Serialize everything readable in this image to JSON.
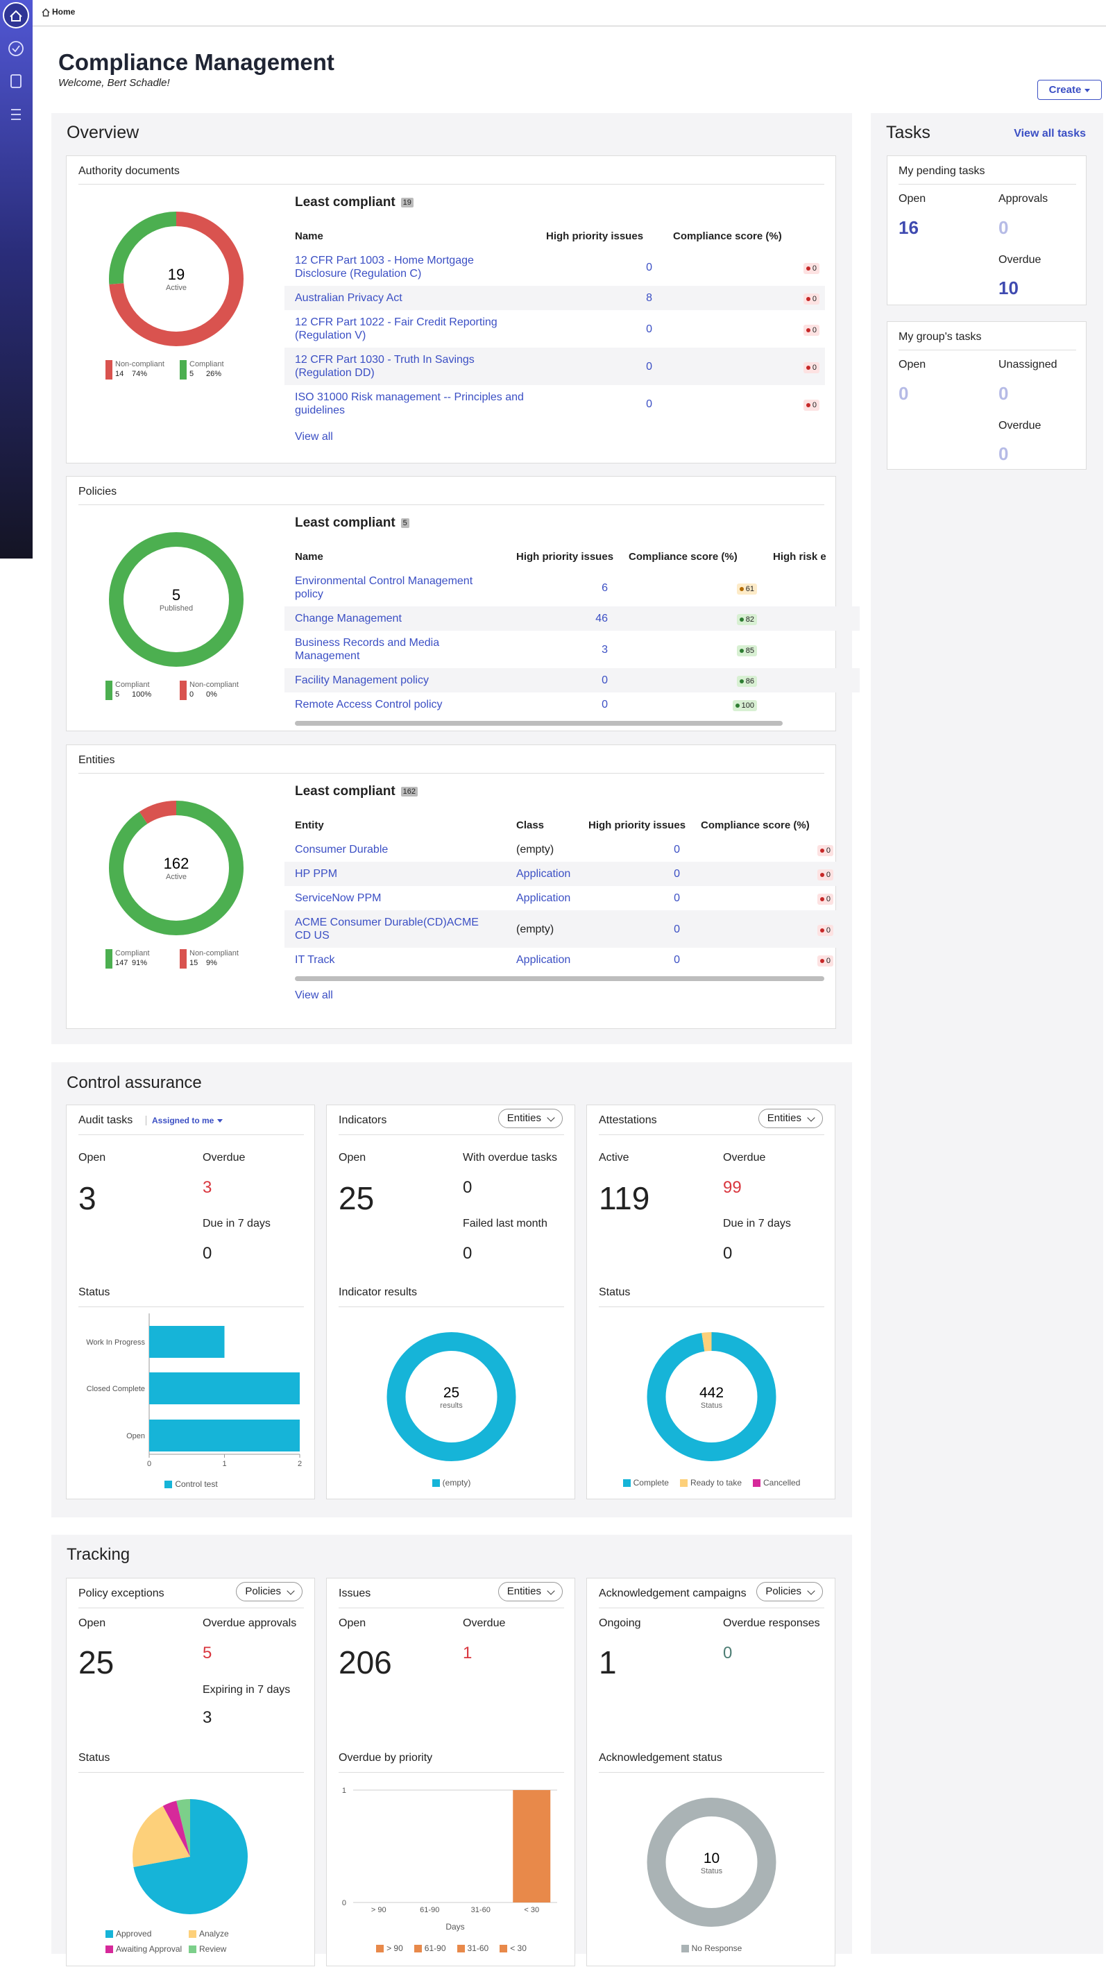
{
  "breadcrumb": "Home",
  "header": {
    "title": "Compliance Management",
    "welcome": "Welcome, Bert Schadle!",
    "create": "Create"
  },
  "overview": {
    "title": "Overview",
    "cards": [
      {
        "title": "Authority documents",
        "donut": {
          "type": "donut",
          "total": 19,
          "label": "Active",
          "segments": [
            {
              "name": "Non-compliant",
              "value": 14,
              "percent": "74%",
              "color": "#d9534f"
            },
            {
              "name": "Compliant",
              "value": 5,
              "percent": "26%",
              "color": "#4caf50"
            }
          ]
        },
        "table": {
          "heading": "Least compliant",
          "count": 19,
          "columns": [
            "Name",
            "High priority issues",
            "Compliance score (%)"
          ],
          "rows": [
            {
              "name": "12 CFR Part 1003 - Home Mortgage Disclosure (Regulation C)",
              "issues": 0,
              "score": 0,
              "score_color": "red"
            },
            {
              "name": "Australian Privacy Act",
              "issues": 8,
              "score": 0,
              "score_color": "red"
            },
            {
              "name": "12 CFR Part 1022 - Fair Credit Reporting (Regulation V)",
              "issues": 0,
              "score": 0,
              "score_color": "red"
            },
            {
              "name": "12 CFR Part 1030 - Truth In Savings (Regulation DD)",
              "issues": 0,
              "score": 0,
              "score_color": "red"
            },
            {
              "name": "ISO 31000 Risk management -- Principles and guidelines",
              "issues": 0,
              "score": 0,
              "score_color": "red"
            }
          ]
        },
        "view_all": "View all"
      },
      {
        "title": "Policies",
        "donut": {
          "type": "donut",
          "total": 5,
          "label": "Published",
          "segments": [
            {
              "name": "Compliant",
              "value": 5,
              "percent": "100%",
              "color": "#4caf50"
            },
            {
              "name": "Non-compliant",
              "value": 0,
              "percent": "0%",
              "color": "#d9534f"
            }
          ]
        },
        "table": {
          "heading": "Least compliant",
          "count": 5,
          "columns": [
            "Name",
            "High priority issues",
            "Compliance score (%)",
            "High risk e"
          ],
          "rows": [
            {
              "name": "Environmental Control Management policy",
              "issues": 6,
              "score": 61,
              "score_color": "orange"
            },
            {
              "name": "Change Management",
              "issues": 46,
              "score": 82,
              "score_color": "green"
            },
            {
              "name": "Business Records and Media Management",
              "issues": 3,
              "score": 85,
              "score_color": "green"
            },
            {
              "name": "Facility Management policy",
              "issues": 0,
              "score": 86,
              "score_color": "green"
            },
            {
              "name": "Remote Access Control policy",
              "issues": 0,
              "score": 100,
              "score_color": "green"
            }
          ]
        }
      },
      {
        "title": "Entities",
        "donut": {
          "type": "donut",
          "total": 162,
          "label": "Active",
          "segments": [
            {
              "name": "Compliant",
              "value": 147,
              "percent": "91%",
              "color": "#4caf50"
            },
            {
              "name": "Non-compliant",
              "value": 15,
              "percent": "9%",
              "color": "#d9534f"
            }
          ]
        },
        "table": {
          "heading": "Least compliant",
          "count": 162,
          "columns": [
            "Entity",
            "Class",
            "High priority issues",
            "Compliance score (%)"
          ],
          "rows": [
            {
              "name": "Consumer Durable",
              "class": "(empty)",
              "class_color": "#222222",
              "issues": 0,
              "score": 0,
              "score_color": "red"
            },
            {
              "name": "HP PPM",
              "class": "Application",
              "class_color": "#3b4fc4",
              "issues": 0,
              "score": 0,
              "score_color": "red"
            },
            {
              "name": "ServiceNow PPM",
              "class": "Application",
              "class_color": "#3b4fc4",
              "issues": 0,
              "score": 0,
              "score_color": "red"
            },
            {
              "name": "ACME Consumer Durable(CD)ACME CD US",
              "class": "(empty)",
              "class_color": "#222222",
              "issues": 0,
              "score": 0,
              "score_color": "red"
            },
            {
              "name": "IT Track",
              "class": "Application",
              "class_color": "#3b4fc4",
              "issues": 0,
              "score": 0,
              "score_color": "red"
            }
          ]
        },
        "view_all": "View all"
      }
    ]
  },
  "tasks": {
    "title": "Tasks",
    "view_all": "View all tasks",
    "cards": [
      {
        "title": "My pending tasks",
        "stats": [
          {
            "label": "Open",
            "value": 16,
            "color": "#3f4ab0"
          },
          {
            "label": "Approvals",
            "value": 0,
            "color": "#b6bbe6"
          },
          {
            "label": "Overdue",
            "value": 10,
            "color": "#3f4ab0"
          }
        ]
      },
      {
        "title": "My group's tasks",
        "stats": [
          {
            "label": "Open",
            "value": 0,
            "color": "#b6bbe6"
          },
          {
            "label": "Unassigned",
            "value": 0,
            "color": "#b6bbe6"
          },
          {
            "label": "Overdue",
            "value": 0,
            "color": "#b6bbe6"
          }
        ]
      }
    ]
  },
  "control_assurance": {
    "title": "Control assurance",
    "cards": [
      {
        "title": "Audit tasks",
        "filter": "Assigned to me",
        "stats": [
          {
            "label": "Open",
            "value": 3,
            "color": "#222222"
          },
          {
            "label": "Overdue",
            "value": 3,
            "color": "#d9363e"
          },
          {
            "label": "Due in 7 days",
            "value": 0,
            "color": "#222222"
          }
        ],
        "chart": {
          "title": "Status",
          "type": "hbar",
          "categories": [
            "Work In Progress",
            "Closed Complete",
            "Open"
          ],
          "series": [
            {
              "name": "Control test",
              "color": "#16b4d8",
              "values": [
                1,
                2,
                2
              ]
            }
          ],
          "xlim": [
            0,
            2
          ],
          "xticks": [
            0,
            1,
            2
          ]
        }
      },
      {
        "title": "Indicators",
        "dropdown": "Entities",
        "stats": [
          {
            "label": "Open",
            "value": 25,
            "color": "#222222"
          },
          {
            "label": "With overdue tasks",
            "value": 0,
            "color": "#222222"
          },
          {
            "label": "Failed last month",
            "value": 0,
            "color": "#222222"
          }
        ],
        "chart": {
          "title": "Indicator results",
          "type": "donut",
          "total": 25,
          "label": "results",
          "segments": [
            {
              "name": "(empty)",
              "value": 25,
              "color": "#16b4d8"
            }
          ]
        }
      },
      {
        "title": "Attestations",
        "dropdown": "Entities",
        "stats": [
          {
            "label": "Active",
            "value": 119,
            "color": "#222222"
          },
          {
            "label": "Overdue",
            "value": 99,
            "color": "#d9363e"
          },
          {
            "label": "Due in 7 days",
            "value": 0,
            "color": "#222222"
          }
        ],
        "chart": {
          "title": "Status",
          "type": "donut",
          "total": 442,
          "label": "Status",
          "segments": [
            {
              "name": "Complete",
              "value": 431,
              "color": "#16b4d8"
            },
            {
              "name": "Ready to take",
              "value": 11,
              "color": "#fdd07a"
            },
            {
              "name": "Cancelled",
              "value": 0,
              "color": "#d6299a"
            }
          ]
        }
      }
    ]
  },
  "tracking": {
    "title": "Tracking",
    "cards": [
      {
        "title": "Policy exceptions",
        "dropdown": "Policies",
        "stats": [
          {
            "label": "Open",
            "value": 25,
            "color": "#222222"
          },
          {
            "label": "Overdue approvals",
            "value": 5,
            "color": "#d9363e"
          },
          {
            "label": "Expiring in 7 days",
            "value": 3,
            "color": "#222222"
          }
        ],
        "chart": {
          "title": "Status",
          "type": "pie",
          "segments": [
            {
              "name": "Approved",
              "value": 18,
              "color": "#16b4d8"
            },
            {
              "name": "Analyze",
              "value": 5,
              "color": "#fdd07a"
            },
            {
              "name": "Awaiting Approval",
              "value": 1,
              "color": "#d6299a"
            },
            {
              "name": "Review",
              "value": 1,
              "color": "#7ccf8a"
            }
          ]
        }
      },
      {
        "title": "Issues",
        "dropdown": "Entities",
        "stats": [
          {
            "label": "Open",
            "value": 206,
            "color": "#222222"
          },
          {
            "label": "Overdue",
            "value": 1,
            "color": "#d9363e"
          }
        ],
        "chart": {
          "title": "Overdue by priority",
          "type": "bar",
          "categories": [
            "> 90",
            "61-90",
            "31-60",
            "< 30"
          ],
          "values": [
            0,
            0,
            0,
            1
          ],
          "color": "#e8894a",
          "ylim": [
            0,
            1
          ],
          "yticks": [
            0,
            1
          ],
          "xlabel": "Days",
          "grid": true
        }
      },
      {
        "title": "Acknowledgement campaigns",
        "dropdown": "Policies",
        "stats": [
          {
            "label": "Ongoing",
            "value": 1,
            "color": "#222222"
          },
          {
            "label": "Overdue responses",
            "value": 0,
            "color": "#4d7d74"
          }
        ],
        "chart": {
          "title": "Acknowledgement status",
          "type": "donut",
          "total": 10,
          "label": "Status",
          "segments": [
            {
              "name": "No Response",
              "value": 10,
              "color": "#aab3b5"
            }
          ]
        }
      }
    ]
  }
}
